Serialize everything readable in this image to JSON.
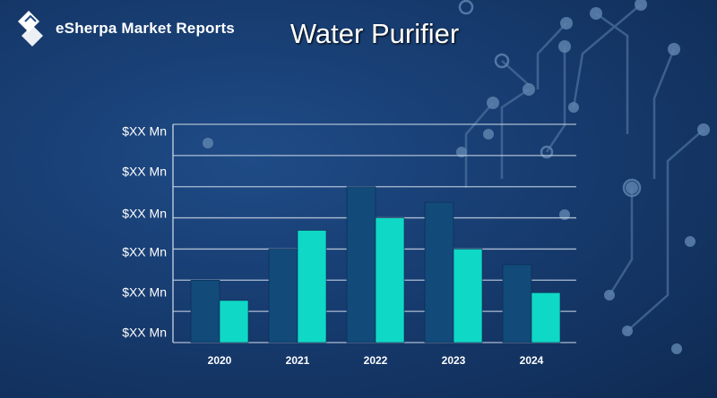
{
  "brand": {
    "name": "eSherpa Market Reports"
  },
  "page": {
    "title": "Water Purifier"
  },
  "colors": {
    "series_dark": "#124a7a",
    "series_light": "#0fd9c6",
    "grid": "#c8d4e4",
    "text": "#ffffff"
  },
  "chart_data": {
    "type": "bar",
    "categories": [
      "2020",
      "2021",
      "2022",
      "2023",
      "2024"
    ],
    "y_tick_labels": [
      "$XX Mn",
      "$XX Mn",
      "$XX Mn",
      "$XX Mn",
      "$XX Mn",
      "$XX Mn"
    ],
    "ylim": [
      0,
      7
    ],
    "grid": true,
    "series": [
      {
        "values": [
          2.0,
          3.0,
          5.0,
          4.5,
          2.5
        ]
      },
      {
        "values": [
          1.35,
          3.6,
          4.0,
          3.0,
          1.6
        ]
      }
    ]
  }
}
